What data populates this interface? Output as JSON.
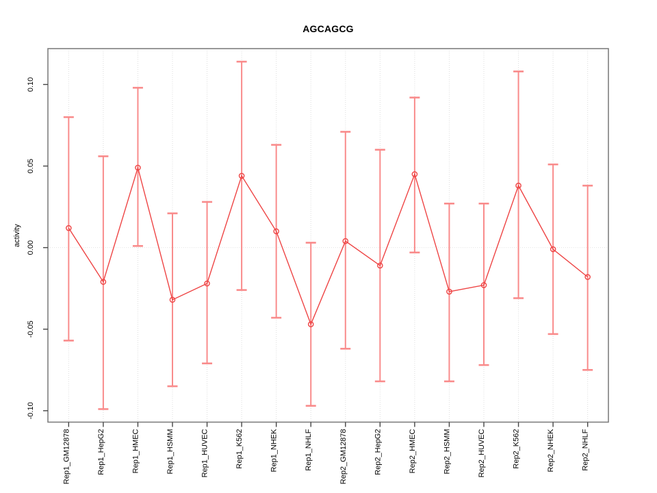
{
  "chart_data": {
    "type": "scatter",
    "subtype": "points-with-error-bars-connected-line",
    "title": "AGCAGCG",
    "xlabel": "",
    "ylabel": "activity",
    "categories": [
      "Rep1_GM12878",
      "Rep1_HepG2",
      "Rep1_HMEC",
      "Rep1_HSMM",
      "Rep1_HUVEC",
      "Rep1_K562",
      "Rep1_NHEK",
      "Rep1_NHLF",
      "Rep2_GM12878",
      "Rep2_HepG2",
      "Rep2_HMEC",
      "Rep2_HSMM",
      "Rep2_HUVEC",
      "Rep2_K562",
      "Rep2_NHEK",
      "Rep2_NHLF"
    ],
    "values": [
      0.012,
      -0.021,
      0.049,
      -0.032,
      -0.022,
      0.044,
      0.01,
      -0.047,
      0.004,
      -0.011,
      0.045,
      -0.027,
      -0.023,
      0.038,
      -0.001,
      -0.018
    ],
    "error_upper": [
      0.08,
      0.056,
      0.098,
      0.021,
      0.028,
      0.114,
      0.063,
      0.003,
      0.071,
      0.06,
      0.092,
      0.027,
      0.027,
      0.108,
      0.051,
      0.038
    ],
    "error_lower": [
      -0.057,
      -0.099,
      0.001,
      -0.085,
      -0.071,
      -0.026,
      -0.043,
      -0.097,
      -0.062,
      -0.082,
      -0.003,
      -0.082,
      -0.072,
      -0.031,
      -0.053,
      -0.075
    ],
    "yticks": {
      "values": [
        -0.1,
        -0.05,
        0.0,
        0.05,
        0.1
      ],
      "labels": [
        "-0.10",
        "-0.05",
        "0.00",
        "0.05",
        "0.10"
      ]
    },
    "ylim": [
      -0.107,
      0.122
    ],
    "grid": "vertical-dotted-per-category-plus-zero-line",
    "legend": "none",
    "zero_line": 0.0
  },
  "colors": {
    "error_bar": "#f98b8b",
    "line_and_points": "#ee4444",
    "grid_line": "#dcdcdc",
    "zero_line": "#e2e2e2",
    "box_border": "#7f7f7f",
    "tick_mark": "#444444",
    "tick_label": "#000000",
    "background": "#ffffff"
  }
}
